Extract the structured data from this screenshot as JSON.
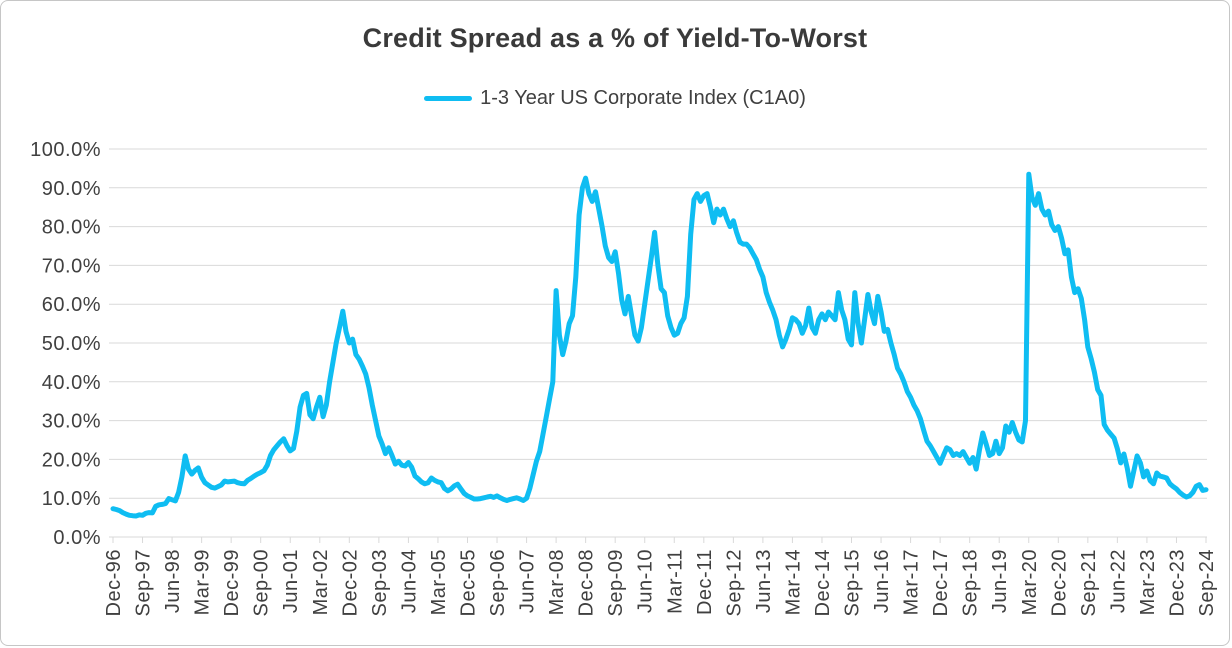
{
  "chart_data": {
    "type": "line",
    "title": "Credit Spread as a % of Yield-To-Worst",
    "legend_position": "top",
    "grid": "horizontal",
    "x_start": "Dec-1996",
    "x_end": "Sep-2024",
    "frequency": "monthly",
    "ylim": [
      0,
      100
    ],
    "y_tick_labels": [
      "0.0%",
      "10.0%",
      "20.0%",
      "30.0%",
      "40.0%",
      "50.0%",
      "60.0%",
      "70.0%",
      "80.0%",
      "90.0%",
      "100.0%"
    ],
    "x_tick_interval_months": 9,
    "x_tick_labels": [
      "Dec-96",
      "Sep-97",
      "Jun-98",
      "Mar-99",
      "Dec-99",
      "Sep-00",
      "Jun-01",
      "Mar-02",
      "Dec-02",
      "Sep-03",
      "Jun-04",
      "Mar-05",
      "Dec-05",
      "Sep-06",
      "Jun-07",
      "Mar-08",
      "Dec-08",
      "Sep-09",
      "Jun-10",
      "Mar-11",
      "Dec-11",
      "Sep-12",
      "Jun-13",
      "Mar-14",
      "Dec-14",
      "Sep-15",
      "Jun-16",
      "Mar-17",
      "Dec-17",
      "Sep-18",
      "Jun-19",
      "Mar-20",
      "Dec-20",
      "Sep-21",
      "Jun-22",
      "Mar-23",
      "Dec-23",
      "Sep-24"
    ],
    "line_color": "#0FBDF2",
    "series": [
      {
        "name": "1-3 Year US Corporate Index (C1A0)",
        "values_pct": [
          7.3,
          7.1,
          6.8,
          6.3,
          5.9,
          5.6,
          5.5,
          5.4,
          5.7,
          5.6,
          6.1,
          6.3,
          6.2,
          7.9,
          8.3,
          8.4,
          8.6,
          9.9,
          9.6,
          9.3,
          11.5,
          15.5,
          20.9,
          17.5,
          16.2,
          17.2,
          17.8,
          15.4,
          14.0,
          13.4,
          12.8,
          12.6,
          13.0,
          13.4,
          14.4,
          14.2,
          14.3,
          14.4,
          14.0,
          13.8,
          13.7,
          14.6,
          15.1,
          15.7,
          16.2,
          16.6,
          17.1,
          18.5,
          21.0,
          22.5,
          23.5,
          24.5,
          25.3,
          23.5,
          22.2,
          22.8,
          27.3,
          33.5,
          36.5,
          37.0,
          31.5,
          30.5,
          33.5,
          36.0,
          31.0,
          34.0,
          40.0,
          45.0,
          50.0,
          54.0,
          58.2,
          53.0,
          50.0,
          51.0,
          47.0,
          45.8,
          44.0,
          42.0,
          38.5,
          34.0,
          30.0,
          26.0,
          24.0,
          21.5,
          23.0,
          21.0,
          18.8,
          19.5,
          18.5,
          18.3,
          19.2,
          18.0,
          15.7,
          15.0,
          14.2,
          13.7,
          14.0,
          15.2,
          14.6,
          14.2,
          14.0,
          12.5,
          11.9,
          12.4,
          13.2,
          13.6,
          12.4,
          11.2,
          10.6,
          10.2,
          9.8,
          9.8,
          9.9,
          10.1,
          10.3,
          10.5,
          10.2,
          10.6,
          10.1,
          9.7,
          9.4,
          9.7,
          9.9,
          10.1,
          9.8,
          9.4,
          10.0,
          12.5,
          16.0,
          19.5,
          22.0,
          26.5,
          31.0,
          35.5,
          40.0,
          63.5,
          52.0,
          47.0,
          50.5,
          55.0,
          57.0,
          67.0,
          83.0,
          90.0,
          92.5,
          88.5,
          86.5,
          89.0,
          84.5,
          80.0,
          75.0,
          72.0,
          71.0,
          73.5,
          68.0,
          61.0,
          57.5,
          62.0,
          57.0,
          52.0,
          50.5,
          54.0,
          60.0,
          66.0,
          72.0,
          78.5,
          70.0,
          64.0,
          63.0,
          57.0,
          54.0,
          52.0,
          52.5,
          55.0,
          56.5,
          62.0,
          78.0,
          87.0,
          88.5,
          86.5,
          88.0,
          88.5,
          85.0,
          81.0,
          84.5,
          83.0,
          84.5,
          82.0,
          80.0,
          81.5,
          78.5,
          76.0,
          75.5,
          75.5,
          74.5,
          73.0,
          71.5,
          69.0,
          67.0,
          63.0,
          60.5,
          58.5,
          56.0,
          52.0,
          49.0,
          51.0,
          53.5,
          56.5,
          56.0,
          55.0,
          52.5,
          54.5,
          59.0,
          54.0,
          52.5,
          56.0,
          57.5,
          56.0,
          58.0,
          57.0,
          56.0,
          63.0,
          58.5,
          56.0,
          51.0,
          49.5,
          63.0,
          55.0,
          50.0,
          56.0,
          62.5,
          58.0,
          55.0,
          62.0,
          58.0,
          53.0,
          53.5,
          50.0,
          47.0,
          43.5,
          42.0,
          40.0,
          37.5,
          36.0,
          34.0,
          32.5,
          30.5,
          27.5,
          24.7,
          23.5,
          22.0,
          20.5,
          19.0,
          21.0,
          23.0,
          22.5,
          21.0,
          21.5,
          21.0,
          22.0,
          20.5,
          19.0,
          20.5,
          17.5,
          22.5,
          26.8,
          24.0,
          21.0,
          21.5,
          24.7,
          21.5,
          23.0,
          28.6,
          27.0,
          29.5,
          27.0,
          25.0,
          24.5,
          30.0,
          93.5,
          87.5,
          85.5,
          88.5,
          84.5,
          83.0,
          84.0,
          80.5,
          79.0,
          80.0,
          77.0,
          73.0,
          74.0,
          67.0,
          63.0,
          64.0,
          61.5,
          56.0,
          49.0,
          46.0,
          42.5,
          38.0,
          36.5,
          29.0,
          27.5,
          26.5,
          25.5,
          22.7,
          19.1,
          21.4,
          17.8,
          13.1,
          17.0,
          20.9,
          19.1,
          15.5,
          17.0,
          14.5,
          13.7,
          16.5,
          15.7,
          15.5,
          15.2,
          13.7,
          13.0,
          12.4,
          11.5,
          10.8,
          10.3,
          10.6,
          11.5,
          13.1,
          13.5,
          12.0,
          12.2
        ]
      }
    ]
  }
}
